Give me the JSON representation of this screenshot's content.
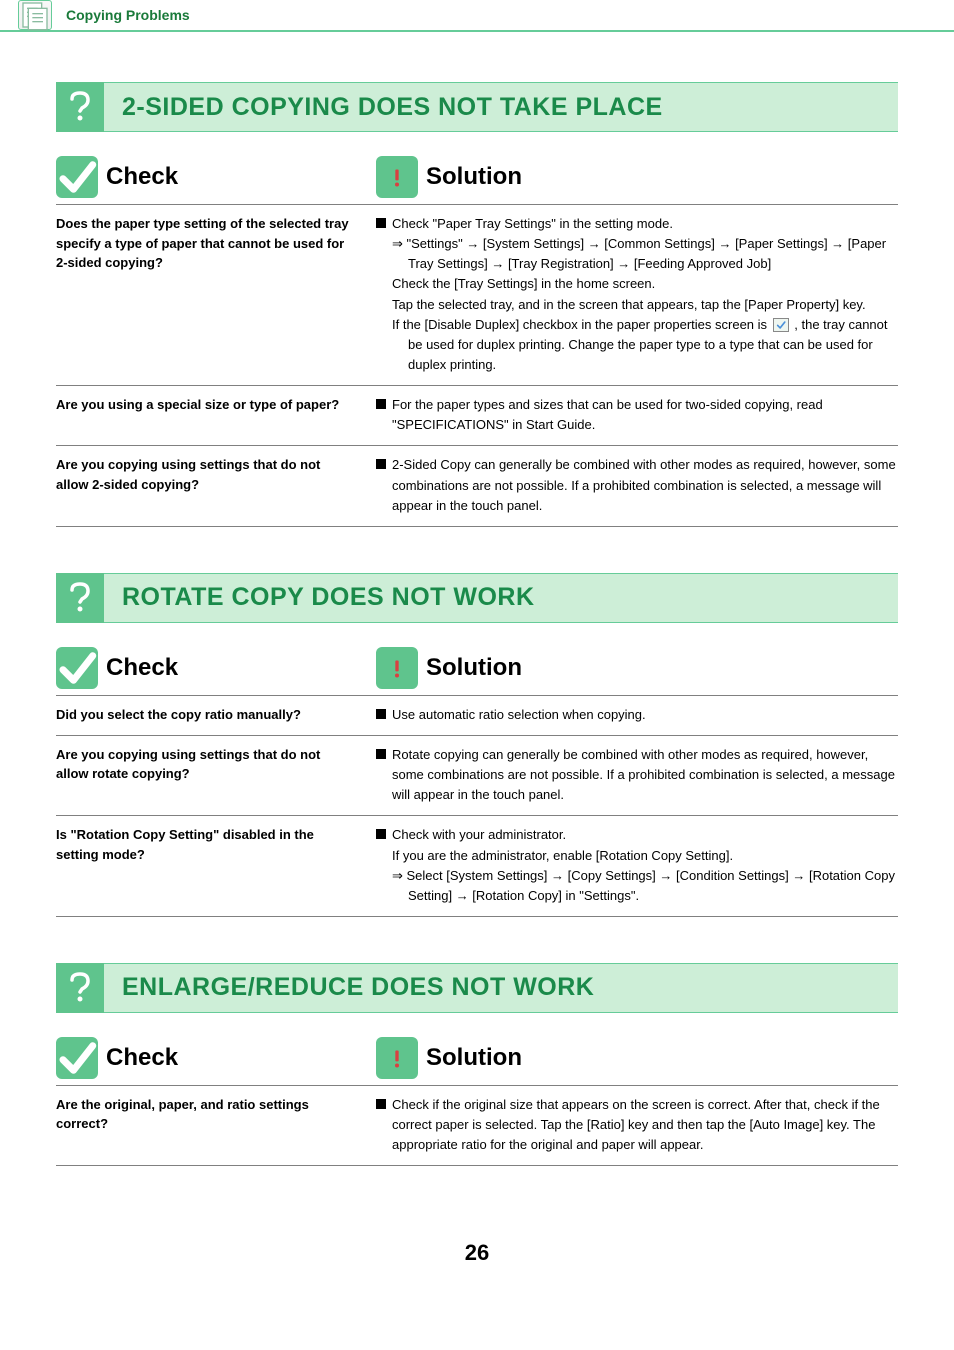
{
  "header": {
    "link_text": "Copying Problems"
  },
  "colors": {
    "accent": "#5fc48d",
    "accent_light": "#cdeed7",
    "header_text": "#1a7a3a",
    "title_text": "#1a8a4a",
    "rule": "#808080",
    "border_light": "#66cc99"
  },
  "labels": {
    "check": "Check",
    "solution": "Solution"
  },
  "sections": [
    {
      "title": "2-SIDED COPYING DOES NOT TAKE PLACE",
      "rows": [
        {
          "q": "Does the paper type setting of the selected tray specify a type of paper that cannot be used for 2-sided copying?",
          "a_lead": "Check \"Paper Tray Settings\" in the setting mode.",
          "a_lines": [
            "⇒ \"Settings\" → [System Settings] → [Common Settings] → [Paper Settings]  → [Paper Tray Settings] → [Tray Registration] → [Feeding Approved Job]",
            "Check the [Tray Settings] in the home screen.",
            "Tap the selected tray, and in the screen that appears, tap the [Paper Property] key.",
            "If the [Disable Duplex] checkbox in the paper properties screen is  {{CHECK}} , the tray cannot be used for duplex printing. Change the paper type to a type that can be used for duplex printing."
          ]
        },
        {
          "q": "Are you using a special size or type of paper?",
          "a_lead": "For the paper types and sizes that can be used for two-sided copying, read \"SPECIFICATIONS\" in Start Guide.",
          "a_lines": []
        },
        {
          "q": "Are you copying using settings that do not allow 2-sided copying?",
          "a_lead": "2-Sided Copy can generally be combined with other modes as required, however, some combinations are not possible.  If a prohibited combination is selected, a message will appear in the touch panel.",
          "a_lines": []
        }
      ]
    },
    {
      "title": "ROTATE COPY DOES NOT WORK",
      "rows": [
        {
          "q": "Did you select the copy ratio manually?",
          "a_lead": "Use automatic ratio selection when copying.",
          "a_lines": []
        },
        {
          "q": "Are you copying using settings that do not allow rotate copying?",
          "a_lead": "Rotate copying can generally be combined with other modes as required, however, some combinations are not possible.  If a prohibited combination is selected, a message will appear in the touch panel.",
          "a_lines": []
        },
        {
          "q": "Is \"Rotation Copy Setting\" disabled in the setting mode?",
          "a_lead": "Check with your administrator.",
          "a_lines": [
            "If you are the administrator, enable [Rotation Copy Setting].",
            "⇒ Select [System Settings] → [Copy Settings] → [Condition Settings] → [Rotation Copy Setting] → [Rotation Copy] in \"Settings\"."
          ]
        }
      ]
    },
    {
      "title": "ENLARGE/REDUCE DOES NOT WORK",
      "rows": [
        {
          "q": "Are the original, paper, and ratio settings correct?",
          "a_lead": "Check if the original size that appears on the screen is correct. After that, check if the correct paper is selected. Tap the [Ratio] key and then tap the [Auto Image] key. The appropriate ratio for the original and paper will appear.",
          "a_lines": []
        }
      ]
    }
  ],
  "page_number": "26"
}
